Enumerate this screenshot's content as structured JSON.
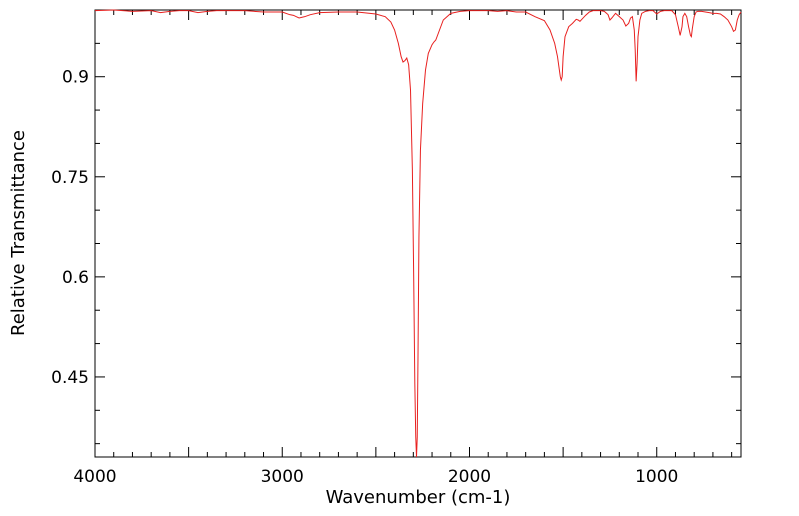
{
  "chart_data": {
    "type": "line",
    "title": "",
    "xlabel": "Wavenumber (cm-1)",
    "ylabel": "Relative Transmittance",
    "x_reversed": true,
    "xlim": [
      4000,
      550
    ],
    "ylim": [
      0.33,
      1.0
    ],
    "x_ticks": [
      4000,
      3000,
      2000,
      1000
    ],
    "x_tick_labels": [
      "4000",
      "3000",
      "2000",
      "1000"
    ],
    "y_ticks": [
      0.9,
      0.75,
      0.6,
      0.45
    ],
    "y_tick_labels": [
      "0.9",
      "0.75",
      "0.6",
      "0.45"
    ],
    "grid": false,
    "legend": "none",
    "line_color": "#e8201f",
    "series": [
      {
        "x": [
          4000,
          3900,
          3800,
          3700,
          3650,
          3600,
          3550,
          3500,
          3450,
          3400,
          3350,
          3300,
          3200,
          3100,
          3000,
          2960,
          2940,
          2925,
          2910,
          2880,
          2850,
          2800,
          2700,
          2600,
          2500,
          2450,
          2420,
          2400,
          2380,
          2365,
          2355,
          2345,
          2335,
          2325,
          2315,
          2305,
          2298,
          2292,
          2287,
          2283,
          2279,
          2275,
          2270,
          2262,
          2250,
          2235,
          2220,
          2200,
          2190,
          2180,
          2160,
          2140,
          2100,
          2050,
          2000,
          1950,
          1900,
          1850,
          1800,
          1750,
          1700,
          1650,
          1600,
          1570,
          1545,
          1530,
          1520,
          1515,
          1510,
          1505,
          1500,
          1490,
          1470,
          1450,
          1430,
          1420,
          1410,
          1400,
          1380,
          1360,
          1340,
          1320,
          1300,
          1280,
          1260,
          1250,
          1240,
          1220,
          1200,
          1180,
          1165,
          1150,
          1140,
          1130,
          1120,
          1115,
          1110,
          1105,
          1100,
          1090,
          1080,
          1060,
          1040,
          1020,
          1000,
          980,
          960,
          940,
          920,
          900,
          885,
          875,
          865,
          860,
          850,
          840,
          830,
          820,
          815,
          810,
          800,
          790,
          780,
          760,
          740,
          720,
          700,
          680,
          660,
          640,
          620,
          600,
          590,
          580,
          570,
          560,
          550
        ],
        "y": [
          0.999,
          1.0,
          0.998,
          0.999,
          0.996,
          0.998,
          0.999,
          0.999,
          0.996,
          0.998,
          0.999,
          0.999,
          0.999,
          0.997,
          0.997,
          0.993,
          0.992,
          0.99,
          0.988,
          0.99,
          0.993,
          0.996,
          0.997,
          0.997,
          0.994,
          0.99,
          0.982,
          0.97,
          0.95,
          0.93,
          0.922,
          0.924,
          0.928,
          0.918,
          0.88,
          0.76,
          0.6,
          0.44,
          0.36,
          0.33,
          0.36,
          0.48,
          0.66,
          0.79,
          0.86,
          0.91,
          0.935,
          0.948,
          0.952,
          0.955,
          0.97,
          0.985,
          0.995,
          0.998,
          0.999,
          0.999,
          0.999,
          0.998,
          0.999,
          0.997,
          0.997,
          0.99,
          0.984,
          0.97,
          0.95,
          0.93,
          0.91,
          0.9,
          0.895,
          0.9,
          0.93,
          0.96,
          0.975,
          0.98,
          0.986,
          0.985,
          0.983,
          0.986,
          0.992,
          0.997,
          0.999,
          0.999,
          0.999,
          0.998,
          0.993,
          0.985,
          0.988,
          0.995,
          0.99,
          0.985,
          0.976,
          0.98,
          0.988,
          0.99,
          0.97,
          0.94,
          0.893,
          0.92,
          0.96,
          0.985,
          0.995,
          0.998,
          0.999,
          0.999,
          0.994,
          0.998,
          0.999,
          0.999,
          0.999,
          0.993,
          0.975,
          0.962,
          0.975,
          0.99,
          0.995,
          0.99,
          0.975,
          0.962,
          0.96,
          0.972,
          0.99,
          0.997,
          0.998,
          0.998,
          0.997,
          0.996,
          0.995,
          0.995,
          0.994,
          0.99,
          0.985,
          0.975,
          0.968,
          0.97,
          0.985,
          0.993,
          0.997
        ]
      }
    ]
  }
}
